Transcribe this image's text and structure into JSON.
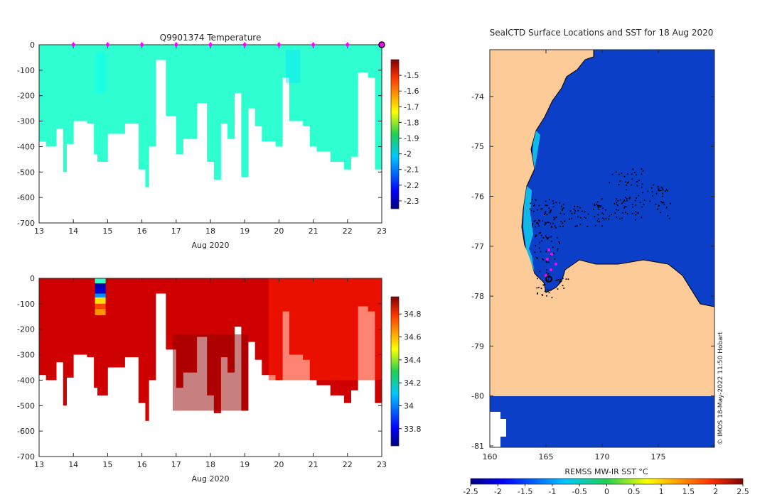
{
  "chart_data": [
    {
      "type": "heatmap",
      "title": "Q9901374  Temperature",
      "xlabel": "Aug 2020",
      "x_ticks": [
        "13",
        "14",
        "15",
        "16",
        "17",
        "18",
        "19",
        "20",
        "21",
        "22",
        "23"
      ],
      "xlim": [
        13,
        23
      ],
      "ylim": [
        -700,
        0
      ],
      "y_ticks": [
        "0",
        "-100",
        "-200",
        "-300",
        "-400",
        "-500",
        "-600",
        "-700"
      ],
      "colorbar_ticks": [
        "-1.5",
        "-1.6",
        "-1.7",
        "-1.8",
        "-1.9",
        "-2",
        "-2.1",
        "-2.2",
        "-2.3"
      ],
      "colorbar_range": [
        -2.35,
        -1.4
      ],
      "dominant_value": -1.95,
      "profile_markers_day": [
        14,
        15,
        16,
        17,
        18,
        19,
        20,
        21,
        22
      ],
      "current_marker_day": 23,
      "cast_depths": [
        [
          13.0,
          380
        ],
        [
          13.2,
          400
        ],
        [
          13.5,
          330
        ],
        [
          13.7,
          500
        ],
        [
          13.8,
          390
        ],
        [
          14.0,
          300
        ],
        [
          14.4,
          310
        ],
        [
          14.6,
          430
        ],
        [
          14.7,
          460
        ],
        [
          15.0,
          350
        ],
        [
          15.5,
          310
        ],
        [
          15.9,
          490
        ],
        [
          16.1,
          560
        ],
        [
          16.2,
          400
        ],
        [
          16.4,
          60
        ],
        [
          16.7,
          280
        ],
        [
          17.0,
          430
        ],
        [
          17.2,
          370
        ],
        [
          17.6,
          230
        ],
        [
          17.9,
          460
        ],
        [
          18.1,
          530
        ],
        [
          18.3,
          310
        ],
        [
          18.5,
          370
        ],
        [
          18.7,
          190
        ],
        [
          18.9,
          520
        ],
        [
          19.1,
          250
        ],
        [
          19.3,
          320
        ],
        [
          19.5,
          380
        ],
        [
          19.9,
          400
        ],
        [
          20.1,
          130
        ],
        [
          20.3,
          300
        ],
        [
          20.7,
          320
        ],
        [
          20.9,
          400
        ],
        [
          21.1,
          420
        ],
        [
          21.5,
          460
        ],
        [
          21.9,
          490
        ],
        [
          22.1,
          440
        ],
        [
          22.3,
          110
        ],
        [
          22.6,
          130
        ],
        [
          22.8,
          490
        ],
        [
          23.0,
          470
        ]
      ]
    },
    {
      "type": "heatmap",
      "title": "",
      "xlabel": "Aug 2020",
      "x_ticks": [
        "13",
        "14",
        "15",
        "16",
        "17",
        "18",
        "19",
        "20",
        "21",
        "22",
        "23"
      ],
      "xlim": [
        13,
        23
      ],
      "ylim": [
        -700,
        0
      ],
      "y_ticks": [
        "0",
        "-100",
        "-200",
        "-300",
        "-400",
        "-500",
        "-600",
        "-700"
      ],
      "colorbar_ticks": [
        "34.8",
        "34.6",
        "34.4",
        "34.2",
        "34",
        "33.8"
      ],
      "colorbar_range": [
        33.65,
        34.95
      ],
      "dominant_value": 34.85
    },
    {
      "type": "heatmap",
      "title": "SealCTD Surface Locations and SST for 18 Aug 2020",
      "xlabel": "",
      "x_ticks": [
        "160",
        "165",
        "170",
        "175"
      ],
      "xlim": [
        160,
        180
      ],
      "y_ticks": [
        "-74",
        "-75",
        "-76",
        "-77",
        "-78",
        "-79",
        "-80",
        "-81"
      ],
      "ylim": [
        -81,
        -73
      ],
      "colorbar_label": "REMSS MW-IR SST °C",
      "colorbar_ticks": [
        "-2.5",
        "-2",
        "-1.5",
        "-1",
        "-0.5",
        "0",
        "0.5",
        "1",
        "1.5",
        "2",
        "2.5"
      ],
      "colorbar_range": [
        -2.5,
        2.5
      ],
      "credit": "© IMOS 18-May-2022 11:50 Hobart"
    }
  ],
  "colors": {
    "temperature_field": "#14c23c",
    "salinity_field": "#d24a0e",
    "ocean": "#0b3fc8",
    "land": "#fdcb97",
    "marker": "#ff00ff"
  }
}
